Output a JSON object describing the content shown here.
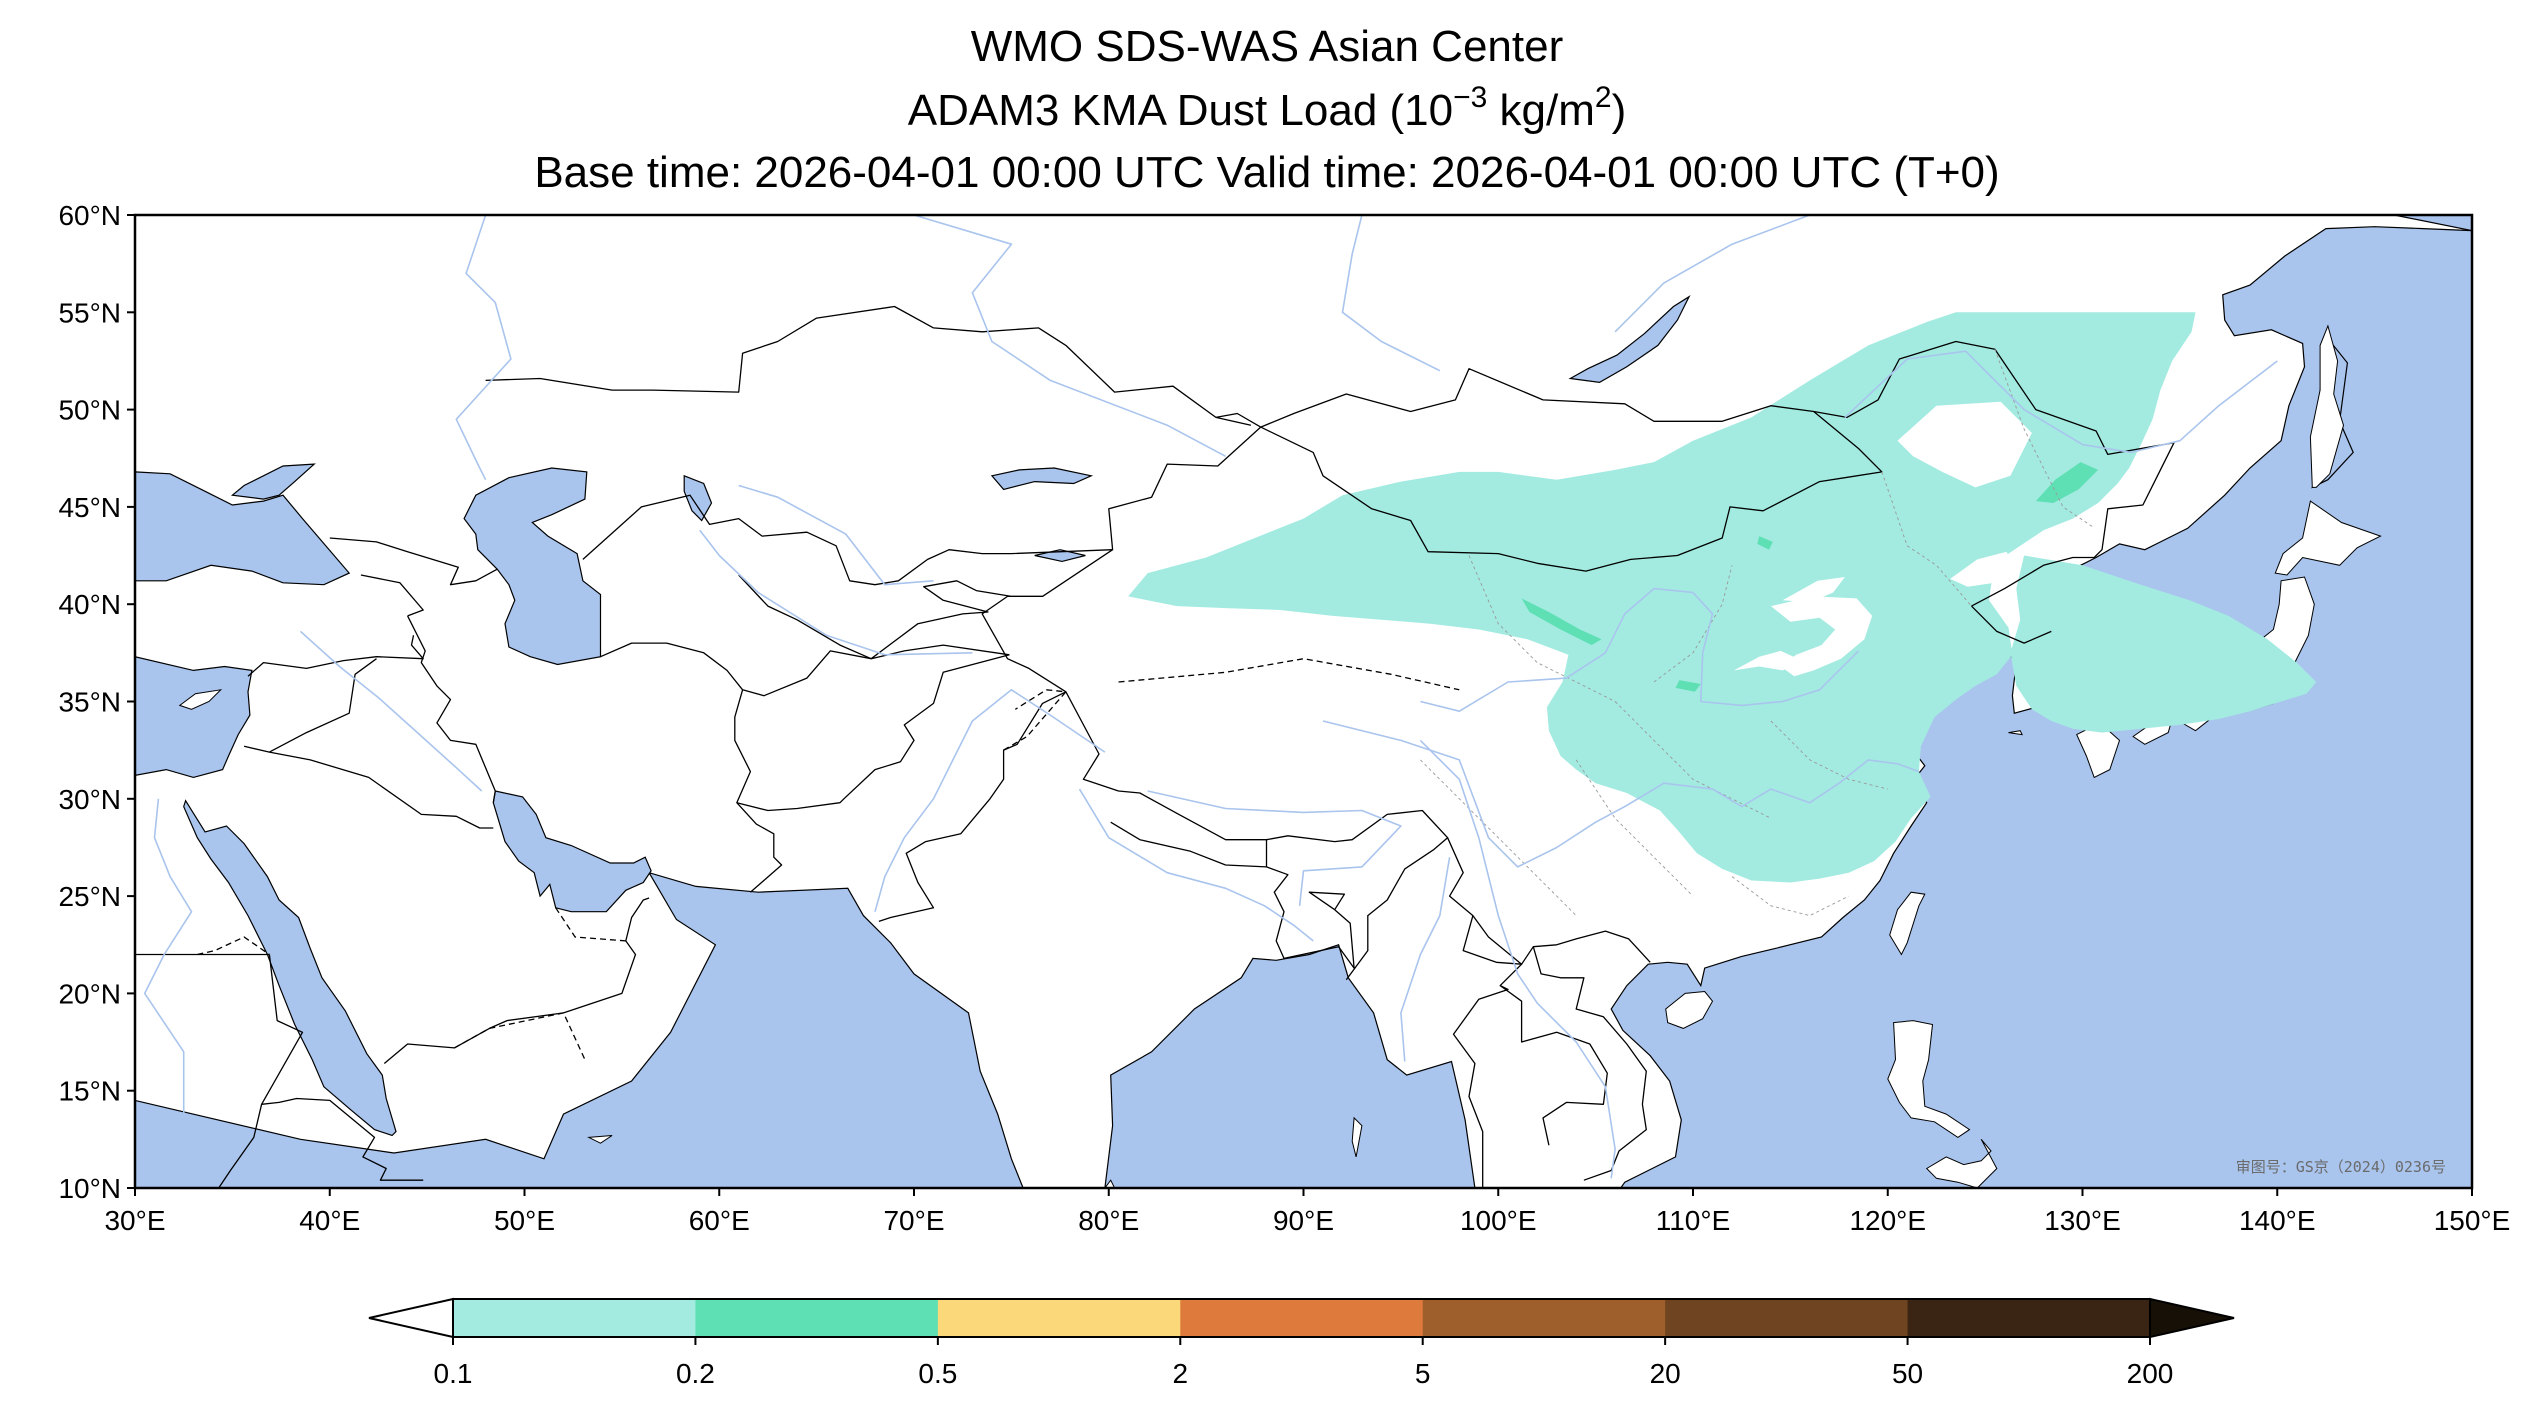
{
  "title": {
    "line1": "WMO SDS-WAS Asian Center",
    "line2_prefix": "ADAM3 KMA Dust Load (10",
    "line2_exp": "−3",
    "line2_mid": " kg/m",
    "line2_exp2": "2",
    "line2_suffix": ")",
    "line3": "Base time: 2026-04-01 00:00 UTC Valid time: 2026-04-01 00:00 UTC (T+0)"
  },
  "map": {
    "projection": "equirectangular",
    "lon_range": [
      30,
      150
    ],
    "lat_range": [
      10,
      60
    ],
    "lon_ticks": [
      {
        "value": 30,
        "label": "30°E"
      },
      {
        "value": 40,
        "label": "40°E"
      },
      {
        "value": 50,
        "label": "50°E"
      },
      {
        "value": 60,
        "label": "60°E"
      },
      {
        "value": 70,
        "label": "70°E"
      },
      {
        "value": 80,
        "label": "80°E"
      },
      {
        "value": 90,
        "label": "90°E"
      },
      {
        "value": 100,
        "label": "100°E"
      },
      {
        "value": 110,
        "label": "110°E"
      },
      {
        "value": 120,
        "label": "120°E"
      },
      {
        "value": 130,
        "label": "130°E"
      },
      {
        "value": 140,
        "label": "140°E"
      },
      {
        "value": 150,
        "label": "150°E"
      }
    ],
    "lat_ticks": [
      {
        "value": 60,
        "label": "60°N"
      },
      {
        "value": 55,
        "label": "55°N"
      },
      {
        "value": 50,
        "label": "50°N"
      },
      {
        "value": 45,
        "label": "45°N"
      },
      {
        "value": 40,
        "label": "40°N"
      },
      {
        "value": 35,
        "label": "35°N"
      },
      {
        "value": 30,
        "label": "30°N"
      },
      {
        "value": 25,
        "label": "25°N"
      },
      {
        "value": 20,
        "label": "20°N"
      },
      {
        "value": 15,
        "label": "15°N"
      },
      {
        "value": 10,
        "label": "10°N"
      }
    ],
    "colors": {
      "water": "#a9c4ed",
      "land": "#ffffff",
      "border": "#000000",
      "river": "#a9c4ed"
    },
    "approval_number": "审图号：GS京（2024）0236号",
    "dust_fields": [
      {
        "name": "north-china-dust-plume",
        "level": "0.1-0.2",
        "outline": [
          [
            81,
            40.4
          ],
          [
            82,
            41.6
          ],
          [
            85,
            42.4
          ],
          [
            88,
            43.6
          ],
          [
            90,
            44.4
          ],
          [
            92,
            45.6
          ],
          [
            95,
            46.3
          ],
          [
            98,
            46.8
          ],
          [
            100,
            46.8
          ],
          [
            103,
            46.4
          ],
          [
            106,
            46.9
          ],
          [
            108,
            47.3
          ],
          [
            110,
            48.4
          ],
          [
            113,
            49.6
          ],
          [
            116,
            51.5
          ],
          [
            119,
            53.3
          ],
          [
            122,
            54.5
          ],
          [
            123.5,
            55
          ],
          [
            135.8,
            55
          ],
          [
            135.6,
            54
          ],
          [
            134.6,
            52.5
          ],
          [
            134,
            51
          ],
          [
            133.6,
            49.5
          ],
          [
            133,
            48.2
          ],
          [
            132.4,
            47
          ],
          [
            131.8,
            46.2
          ],
          [
            130.8,
            45.2
          ],
          [
            129.5,
            44.4
          ],
          [
            128,
            43.8
          ],
          [
            126.2,
            42.6
          ],
          [
            125.4,
            41.6
          ],
          [
            125.2,
            40.2
          ],
          [
            126.2,
            38.8
          ],
          [
            126.4,
            37.4
          ],
          [
            125.6,
            36.4
          ],
          [
            124.5,
            35.8
          ],
          [
            123.5,
            35.1
          ],
          [
            122.4,
            34.2
          ],
          [
            121.7,
            32.7
          ],
          [
            121.6,
            31.4
          ],
          [
            122.2,
            30.1
          ],
          [
            121.2,
            29
          ],
          [
            120.4,
            27.8
          ],
          [
            119.3,
            26.8
          ],
          [
            118,
            26.2
          ],
          [
            116.5,
            25.9
          ],
          [
            115,
            25.7
          ],
          [
            113,
            25.8
          ],
          [
            111.5,
            26.4
          ],
          [
            110.2,
            27.2
          ],
          [
            109.2,
            28.4
          ],
          [
            108.3,
            29.4
          ],
          [
            106.6,
            30.3
          ],
          [
            105,
            30.8
          ],
          [
            104,
            31.5
          ],
          [
            103.2,
            32.2
          ],
          [
            102.6,
            33.5
          ],
          [
            102.5,
            34.7
          ],
          [
            103.3,
            36
          ],
          [
            103.6,
            37.4
          ],
          [
            101.5,
            38.2
          ],
          [
            99,
            38.7
          ],
          [
            96.5,
            39
          ],
          [
            94,
            39.2
          ],
          [
            91.5,
            39.4
          ],
          [
            88.8,
            39.7
          ],
          [
            86,
            39.8
          ],
          [
            83.5,
            39.9
          ],
          [
            81,
            40.4
          ]
        ]
      },
      {
        "name": "korea-japan-dust-tongue",
        "level": "0.1-0.2",
        "outline": [
          [
            127,
            42.5
          ],
          [
            130,
            42
          ],
          [
            133,
            41
          ],
          [
            135.5,
            40.2
          ],
          [
            137.5,
            39.4
          ],
          [
            139.5,
            38.2
          ],
          [
            141,
            37
          ],
          [
            142,
            36
          ],
          [
            141.5,
            35.4
          ],
          [
            140.2,
            35
          ],
          [
            138.6,
            34.5
          ],
          [
            137,
            34.1
          ],
          [
            135,
            33.8
          ],
          [
            133,
            33.6
          ],
          [
            131,
            33.4
          ],
          [
            129.5,
            33.6
          ],
          [
            128.4,
            34
          ],
          [
            127.4,
            34.6
          ],
          [
            126.6,
            35.8
          ],
          [
            126.3,
            37.5
          ],
          [
            126.8,
            39.2
          ],
          [
            126.6,
            40.8
          ],
          [
            127,
            42.5
          ]
        ]
      },
      {
        "name": "northeast-core",
        "level": "0.2-0.5",
        "outline": [
          [
            127.6,
            45.3
          ],
          [
            128.6,
            46.4
          ],
          [
            129.9,
            47.3
          ],
          [
            130.8,
            46.9
          ],
          [
            129.8,
            45.9
          ],
          [
            128.5,
            45.2
          ],
          [
            127.6,
            45.3
          ]
        ]
      },
      {
        "name": "qilian-core",
        "level": "0.2-0.5",
        "outline": [
          [
            101.2,
            40.3
          ],
          [
            102.6,
            39.6
          ],
          [
            104.2,
            38.7
          ],
          [
            105.3,
            38.2
          ],
          [
            104.8,
            37.9
          ],
          [
            103.2,
            38.7
          ],
          [
            101.6,
            39.6
          ],
          [
            101.2,
            40.3
          ]
        ]
      },
      {
        "name": "central-core-small",
        "level": "0.2-0.5",
        "outline": [
          [
            109.3,
            36.1
          ],
          [
            110.4,
            35.9
          ],
          [
            110.1,
            35.5
          ],
          [
            109.1,
            35.7
          ],
          [
            109.3,
            36.1
          ]
        ]
      },
      {
        "name": "mongolia-core-small",
        "level": "0.2-0.5",
        "outline": [
          [
            113.4,
            43.5
          ],
          [
            114.1,
            43.2
          ],
          [
            113.9,
            42.8
          ],
          [
            113.3,
            43.1
          ],
          [
            113.4,
            43.5
          ]
        ]
      }
    ],
    "clear_holes": [
      {
        "name": "hebei-plain-hole",
        "outline": [
          [
            114,
            39.9
          ],
          [
            116.2,
            40.4
          ],
          [
            118.4,
            40.3
          ],
          [
            119.2,
            39.4
          ],
          [
            118.8,
            38.2
          ],
          [
            117.6,
            37.2
          ],
          [
            116.2,
            36.6
          ],
          [
            115.2,
            36.3
          ],
          [
            114.5,
            36.8
          ],
          [
            115.3,
            37.4
          ],
          [
            116.6,
            37.9
          ],
          [
            117.3,
            38.7
          ],
          [
            116.5,
            39.3
          ],
          [
            115,
            39.1
          ],
          [
            114,
            39.9
          ]
        ]
      },
      {
        "name": "loess-hole",
        "outline": [
          [
            112.1,
            36.6
          ],
          [
            113.4,
            37.3
          ],
          [
            114.5,
            37.6
          ],
          [
            115.6,
            37.1
          ],
          [
            114.6,
            36.6
          ],
          [
            113.4,
            36.8
          ],
          [
            112.1,
            36.6
          ]
        ]
      },
      {
        "name": "inner-mongolia-hole",
        "outline": [
          [
            114.6,
            40.2
          ],
          [
            116.4,
            41.2
          ],
          [
            117.8,
            41.4
          ],
          [
            117.2,
            40.6
          ],
          [
            116,
            40.1
          ],
          [
            114.6,
            40.2
          ]
        ]
      },
      {
        "name": "manchuria-hole",
        "outline": [
          [
            120.5,
            48.4
          ],
          [
            122.5,
            50.2
          ],
          [
            125.8,
            50.4
          ],
          [
            127.4,
            48.8
          ],
          [
            126.3,
            46.6
          ],
          [
            124.5,
            46
          ],
          [
            122.8,
            46.8
          ],
          [
            121.3,
            47.6
          ],
          [
            120.5,
            48.4
          ]
        ]
      },
      {
        "name": "liaoning-hole",
        "outline": [
          [
            123.2,
            41.3
          ],
          [
            124.6,
            42.3
          ],
          [
            126.1,
            42.7
          ],
          [
            126.6,
            41.8
          ],
          [
            125.5,
            41.1
          ],
          [
            124.1,
            40.9
          ],
          [
            123.2,
            41.3
          ]
        ]
      }
    ]
  },
  "colorbar": {
    "bins": [
      {
        "range": "0.1-0.2",
        "color": "#a3ebe1"
      },
      {
        "range": "0.2-0.5",
        "color": "#5ee0b4"
      },
      {
        "range": "0.5-2",
        "color": "#fbd87a"
      },
      {
        "range": "2-5",
        "color": "#de7a3c"
      },
      {
        "range": "5-20",
        "color": "#9e5f2c"
      },
      {
        "range": "20-50",
        "color": "#6e4520"
      },
      {
        "range": "50-200",
        "color": "#3a2414"
      }
    ],
    "under_color": "#ffffff",
    "over_color": "#171006",
    "tick_labels": [
      "0.1",
      "0.2",
      "0.5",
      "2",
      "5",
      "20",
      "50",
      "200"
    ]
  }
}
